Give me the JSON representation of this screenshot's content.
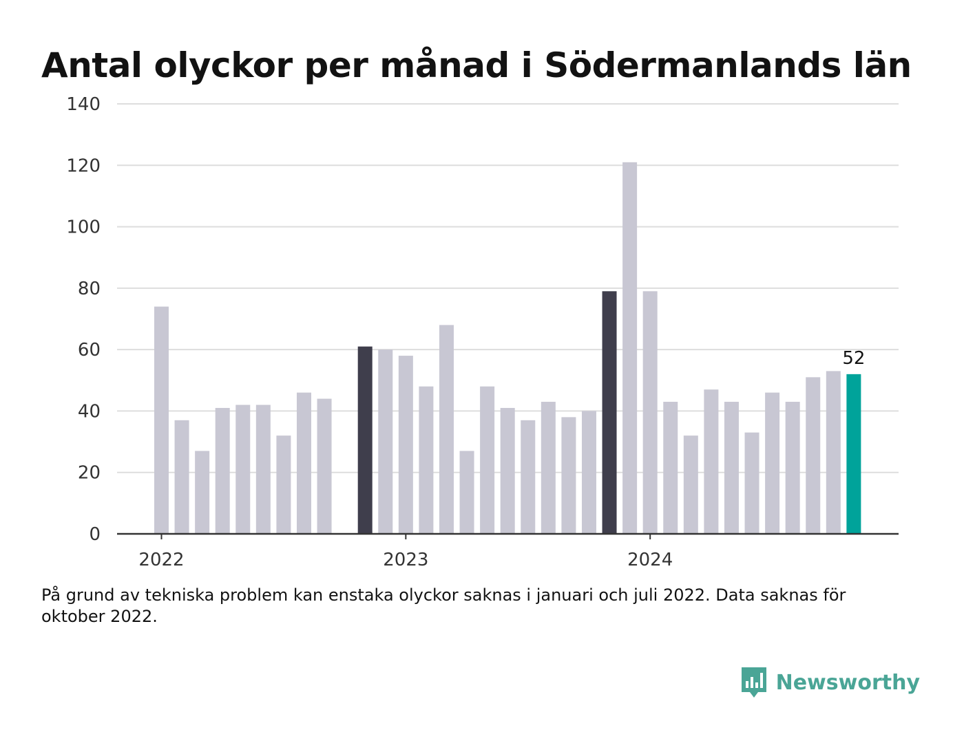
{
  "title": "Antal olyckor per månad i Södermanlands län",
  "footnote": "På grund av tekniska problem kan enstaka olyckor saknas i januari och juli 2022. Data saknas för oktober 2022.",
  "brand": {
    "name": "Newsworthy",
    "icon": "bar-chart-speech-bubble-icon"
  },
  "colors": {
    "default_bar": "#c8c7d3",
    "january_bar": "#3f3e4c",
    "latest_bar": "#00a39a",
    "grid": "#dddddd",
    "axis": "#333333",
    "brand": "#4aa596"
  },
  "chart_data": {
    "type": "bar",
    "ylim": [
      0,
      140
    ],
    "yticks": [
      0,
      20,
      40,
      60,
      80,
      100,
      120,
      140
    ],
    "xtick_labels": [
      {
        "label": "2022",
        "month": "2022-01"
      },
      {
        "label": "2023",
        "month": "2023-01"
      },
      {
        "label": "2024",
        "month": "2024-01"
      }
    ],
    "months": [
      "2022-01",
      "2022-02",
      "2022-03",
      "2022-04",
      "2022-05",
      "2022-06",
      "2022-07",
      "2022-08",
      "2022-09",
      "2022-10",
      "2022-11",
      "2022-12",
      "2023-01",
      "2023-02",
      "2023-03",
      "2023-04",
      "2023-05",
      "2023-06",
      "2023-07",
      "2023-08",
      "2023-09",
      "2023-10",
      "2023-11",
      "2023-12",
      "2024-01",
      "2024-02",
      "2024-03",
      "2024-04",
      "2024-05",
      "2024-06",
      "2024-07",
      "2024-08",
      "2024-09",
      "2024-10",
      "2024-11",
      "2024-12"
    ],
    "values": [
      74,
      37,
      27,
      41,
      42,
      42,
      32,
      46,
      44,
      null,
      61,
      60,
      58,
      48,
      68,
      27,
      48,
      41,
      37,
      43,
      38,
      40,
      79,
      121,
      79,
      43,
      32,
      47,
      43,
      33,
      46,
      43,
      51,
      53,
      52,
      null
    ],
    "highlight": [
      {
        "month": "2022-11",
        "role": "january_bar"
      },
      {
        "month": "2023-11",
        "role": "january_bar"
      },
      {
        "month": "2024-11",
        "role": "latest_bar"
      }
    ],
    "value_label": {
      "month": "2024-11",
      "text": "52"
    },
    "grid": true,
    "legend": "none"
  }
}
